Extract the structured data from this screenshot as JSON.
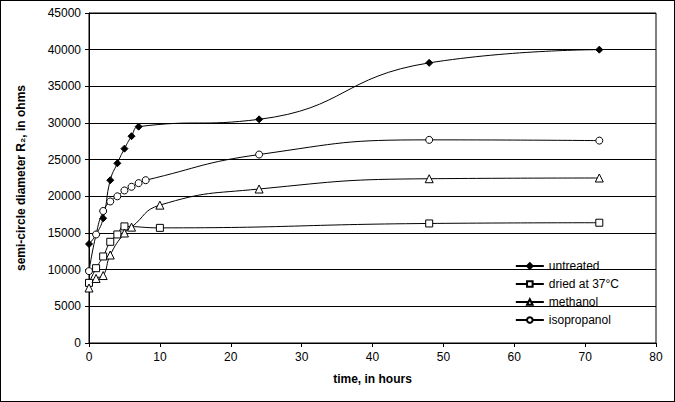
{
  "chart_data": {
    "type": "line",
    "x_label": "time, in hours",
    "y_label": "semi-circle diameter R₂, in ohms",
    "xlim": [
      0,
      80
    ],
    "xticks": [
      0,
      10,
      20,
      30,
      40,
      50,
      60,
      70,
      80
    ],
    "ylim": [
      0,
      45000
    ],
    "yticks": [
      0,
      5000,
      10000,
      15000,
      20000,
      25000,
      30000,
      35000,
      40000,
      45000
    ],
    "grid": true,
    "legend": "lower right",
    "line_style": "solid",
    "series": [
      {
        "name": "untreated",
        "color": "#000000",
        "marker": "diamond",
        "x": [
          0,
          1,
          2,
          3,
          4,
          5,
          6,
          7,
          24,
          48,
          72
        ],
        "values": [
          13500,
          14800,
          17000,
          22200,
          24500,
          26500,
          28200,
          29500,
          30500,
          38200,
          40000
        ]
      },
      {
        "name": "dried at 37°C",
        "color": "#000000",
        "marker": "square",
        "x": [
          0,
          1,
          2,
          3,
          4,
          5,
          10,
          48,
          72
        ],
        "values": [
          8200,
          10200,
          11800,
          13800,
          14800,
          15900,
          15700,
          16300,
          16400
        ]
      },
      {
        "name": "methanol",
        "color": "#000000",
        "marker": "triangle",
        "x": [
          0,
          1,
          2,
          3,
          5,
          6,
          10,
          24,
          48,
          72
        ],
        "values": [
          7500,
          8800,
          9200,
          12000,
          15000,
          15800,
          18800,
          21000,
          22400,
          22500
        ]
      },
      {
        "name": "isopropanol",
        "color": "#000000",
        "marker": "circle",
        "x": [
          0,
          1,
          2,
          3,
          4,
          5,
          6,
          7,
          8,
          24,
          48,
          72
        ],
        "values": [
          9800,
          14800,
          18000,
          19300,
          20000,
          20800,
          21300,
          21800,
          22200,
          25700,
          27700,
          27600
        ]
      }
    ]
  }
}
